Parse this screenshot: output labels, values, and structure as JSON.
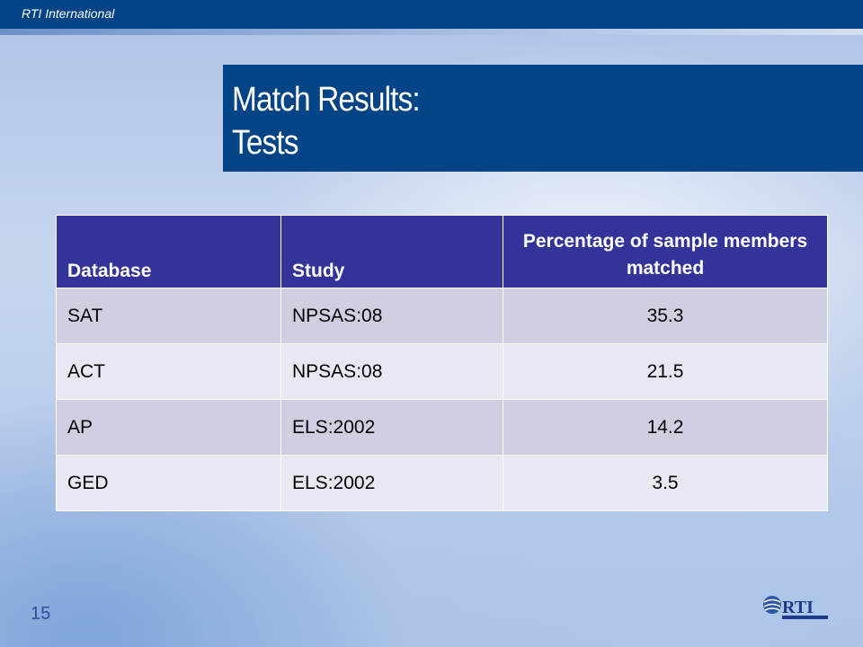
{
  "header": {
    "brand": "RTI International"
  },
  "slide": {
    "title_line1": "Match Results:",
    "title_line2": "Tests",
    "number": "15"
  },
  "table": {
    "columns": [
      "Database",
      "Study",
      "Percentage of sample members matched"
    ],
    "rows": [
      [
        "SAT",
        "NPSAS:08",
        "35.3"
      ],
      [
        "ACT",
        "NPSAS:08",
        "21.5"
      ],
      [
        "AP",
        "ELS:2002",
        "14.2"
      ],
      [
        "GED",
        "ELS:2002",
        "3.5"
      ]
    ]
  },
  "logo": {
    "name": "rti-logo"
  },
  "colors": {
    "header": "#034487",
    "table_header": "#333399",
    "row_odd": "#cfcfe1",
    "row_even": "#e8e8f2"
  }
}
